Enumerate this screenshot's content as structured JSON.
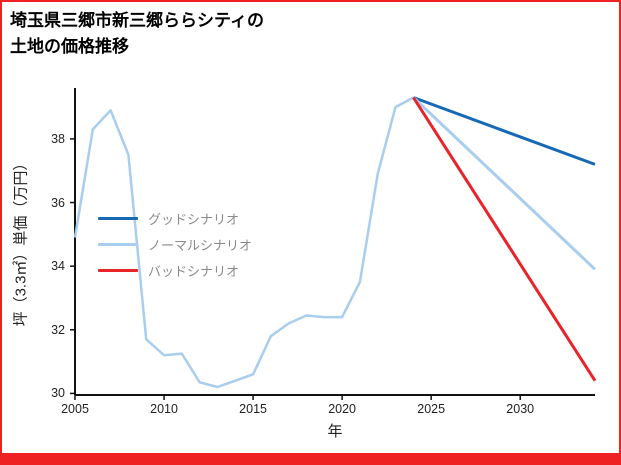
{
  "page": {
    "title_line1": "埼玉県三郷市新三郷ららシティの",
    "title_line2": "土地の価格推移"
  },
  "colors": {
    "frame_red": "#ee2222",
    "axis": "#111111",
    "tick_text": "#222222",
    "legend_text": "#8a8a8a",
    "good_blue": "#1569b5",
    "normal_lightblue": "#a9cdee",
    "bad_red": "#e8232a"
  },
  "chart_data": {
    "type": "line",
    "title": "埼玉県三郷市新三郷ららシティの土地の価格推移",
    "xlabel": "年",
    "ylabel": "坪（3.3㎡）単価（万円）",
    "xlim": [
      2005,
      2034.2
    ],
    "ylim": [
      29.95,
      39.6
    ],
    "xticks": [
      2005,
      2010,
      2015,
      2020,
      2025,
      2030
    ],
    "yticks": [
      30,
      32,
      34,
      36,
      38
    ],
    "grid": false,
    "legend_position": "middle-left",
    "series": [
      {
        "key": "price-history",
        "name": "",
        "x": [
          2005,
          2006,
          2007,
          2008,
          2009,
          2010,
          2011,
          2012,
          2013,
          2014,
          2015,
          2016,
          2017,
          2018,
          2019,
          2020,
          2021,
          2022,
          2023,
          2024
        ],
        "values": [
          34.9,
          38.3,
          38.9,
          37.5,
          31.7,
          31.2,
          31.25,
          30.35,
          30.2,
          30.4,
          30.6,
          31.8,
          32.2,
          32.45,
          32.4,
          32.4,
          33.5,
          36.9,
          39.0,
          39.3
        ],
        "color": "#a9cdee",
        "width": 2.5
      },
      {
        "key": "good-scenario",
        "name": "グッドシナリオ",
        "x": [
          2024,
          2034.2
        ],
        "values": [
          39.3,
          37.2
        ],
        "color": "#1569b5",
        "width": 3
      },
      {
        "key": "normal-scenario",
        "name": "ノーマルシナリオ",
        "x": [
          2024,
          2034.2
        ],
        "values": [
          39.3,
          33.9
        ],
        "color": "#a9cdee",
        "width": 3
      },
      {
        "key": "bad-scenario",
        "name": "バッドシナリオ",
        "x": [
          2024,
          2034.2
        ],
        "values": [
          39.3,
          30.4
        ],
        "color": "#e8232a",
        "width": 3
      }
    ]
  }
}
